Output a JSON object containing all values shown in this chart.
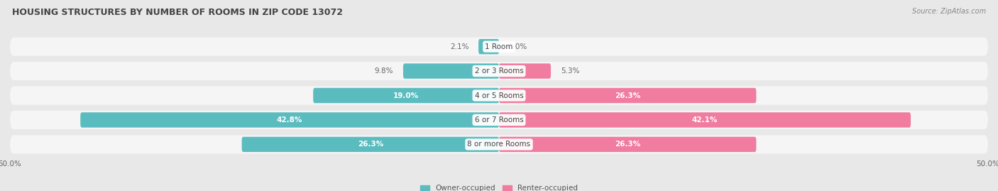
{
  "title": "HOUSING STRUCTURES BY NUMBER OF ROOMS IN ZIP CODE 13072",
  "source": "Source: ZipAtlas.com",
  "categories": [
    "1 Room",
    "2 or 3 Rooms",
    "4 or 5 Rooms",
    "6 or 7 Rooms",
    "8 or more Rooms"
  ],
  "owner_values": [
    2.1,
    9.8,
    19.0,
    42.8,
    26.3
  ],
  "renter_values": [
    0.0,
    5.3,
    26.3,
    42.1,
    26.3
  ],
  "owner_color": "#5bbcbf",
  "renter_color": "#f07ca0",
  "background_color": "#e8e8e8",
  "bar_bg_color": "#f5f5f5",
  "axis_limit": 50.0,
  "bar_height": 0.62,
  "label_fontsize": 7.5,
  "title_fontsize": 9,
  "source_fontsize": 7,
  "category_fontsize": 7.5,
  "tick_fontsize": 7.5,
  "legend_fontsize": 7.5,
  "label_color_inside": "#ffffff",
  "label_color_outside": "#666666"
}
